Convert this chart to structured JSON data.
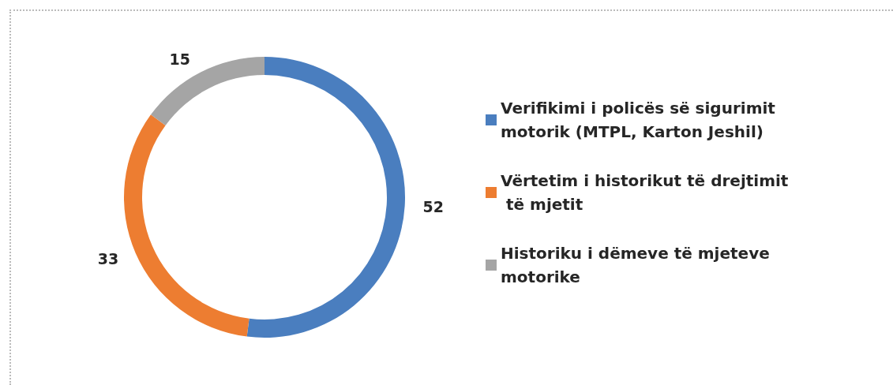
{
  "chart_data": {
    "type": "donut",
    "categories": [
      "Verifikimi i policës së sigurimit motorik (MTPL, Karton Jeshil)",
      "Vërtetim i historikut të drejtimit të mjetit",
      "Historiku i dëmeve të mjeteve motorike"
    ],
    "values": [
      52,
      33,
      15
    ],
    "colors": [
      "#4a7ebf",
      "#ed7d31",
      "#a5a5a5"
    ],
    "data_labels": true,
    "legend": "right"
  }
}
